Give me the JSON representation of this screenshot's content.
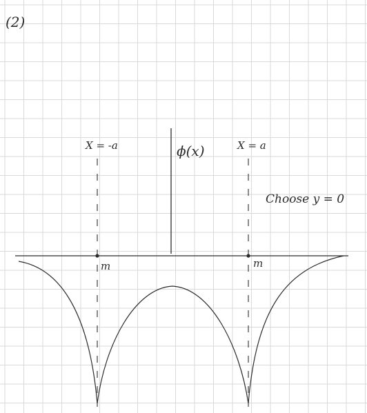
{
  "problem_label": "(2)",
  "axis_label": "ϕ(x)",
  "left_line_label": "X = -a",
  "right_line_label": "X = a",
  "point_label_left": "m",
  "point_label_right": "m",
  "note": "Choose y = 0",
  "colors": {
    "paper": "#ffffff",
    "grid": "#d9d9d9",
    "ink": "#2b2b2b"
  }
}
